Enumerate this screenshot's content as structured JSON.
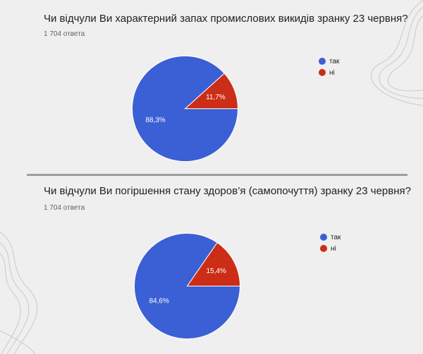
{
  "chart_data": [
    {
      "type": "pie",
      "title": "Чи відчули Ви характерний запах промислових викидів зранку 23 червня?",
      "subtitle": "1 704 ответа",
      "categories": [
        "так",
        "ні"
      ],
      "values": [
        88.3,
        11.7
      ],
      "data_labels": [
        "88,3%",
        "11,7%"
      ],
      "colors": [
        "#3b5fd4",
        "#cc2d16"
      ],
      "legend_position": "right"
    },
    {
      "type": "pie",
      "title": "Чи відчули Ви погіршення стану здоров’я (самопочуття) зранку 23 червня?",
      "subtitle": "1 704 ответа",
      "categories": [
        "так",
        "ні"
      ],
      "values": [
        84.6,
        15.4
      ],
      "data_labels": [
        "84,6%",
        "15,4%"
      ],
      "colors": [
        "#3b5fd4",
        "#cc2d16"
      ],
      "legend_position": "right"
    }
  ]
}
